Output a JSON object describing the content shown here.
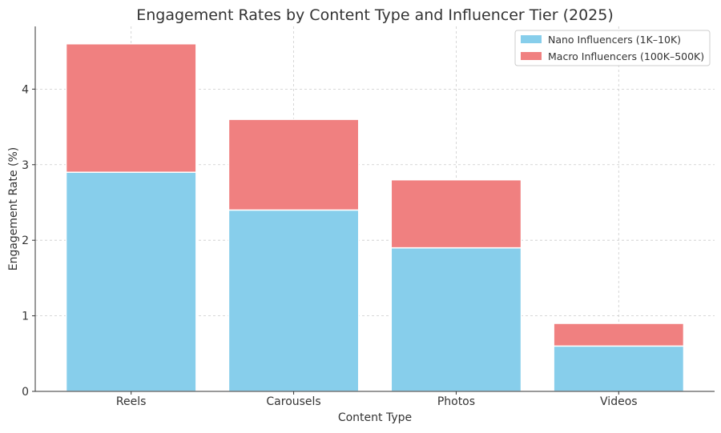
{
  "chart_data": {
    "type": "bar",
    "stacked": true,
    "title": "Engagement Rates by Content Type and Influencer Tier (2025)",
    "xlabel": "Content Type",
    "ylabel": "Engagement Rate (%)",
    "categories": [
      "Reels",
      "Carousels",
      "Photos",
      "Videos"
    ],
    "series": [
      {
        "name": "Nano Influencers (1K–10K)",
        "values": [
          2.9,
          2.4,
          1.9,
          0.6
        ],
        "color": "#87CEEB"
      },
      {
        "name": "Macro Influencers (100K–500K)",
        "values": [
          1.7,
          1.2,
          0.9,
          0.3
        ],
        "color": "#F08080"
      }
    ],
    "ylim": [
      0,
      4.83
    ],
    "yticks": [
      0,
      1,
      2,
      3,
      4
    ],
    "grid": true,
    "legend": "top-right"
  }
}
